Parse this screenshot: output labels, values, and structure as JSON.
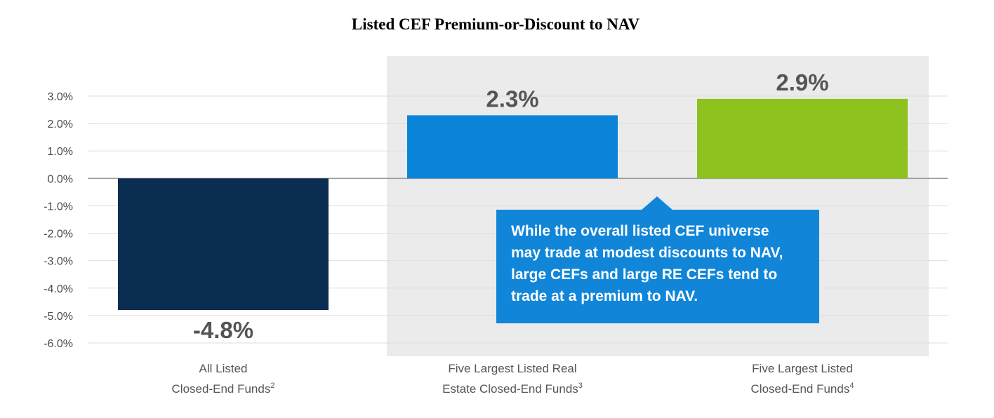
{
  "chart_data": {
    "type": "bar",
    "title": "Listed CEF Premium-or-Discount to NAV",
    "categories": [
      {
        "lines": [
          "All Listed",
          "Closed-End Funds"
        ],
        "footnote": "2"
      },
      {
        "lines": [
          "Five Largest Listed Real",
          "Estate Closed-End Funds"
        ],
        "footnote": "3"
      },
      {
        "lines": [
          "Five Largest Listed",
          "Closed-End Funds"
        ],
        "footnote": "4"
      }
    ],
    "values": [
      -4.8,
      2.3,
      2.9
    ],
    "value_labels": [
      "-4.8%",
      "2.3%",
      "2.9%"
    ],
    "colors": [
      "#0b2d52",
      "#0a84d8",
      "#8dc21f"
    ],
    "highlight_color": "#ebebeb",
    "callout_color": "#1186d9",
    "ylim": [
      -6,
      3
    ],
    "yticks": [
      3,
      2,
      1,
      0,
      -1,
      -2,
      -3,
      -4,
      -5,
      -6
    ],
    "ytick_labels": [
      "3.0%",
      "2.0%",
      "1.0%",
      "0.0%",
      "-1.0%",
      "-2.0%",
      "-3.0%",
      "-4.0%",
      "-5.0%",
      "-6.0%"
    ],
    "callout_lines": [
      "While the overall listed CEF universe",
      "may trade at modest discounts to NAV,",
      "large CEFs and large RE CEFs tend to",
      "trade at a premium to NAV."
    ],
    "xlabel": "",
    "ylabel": "",
    "grid": true
  }
}
